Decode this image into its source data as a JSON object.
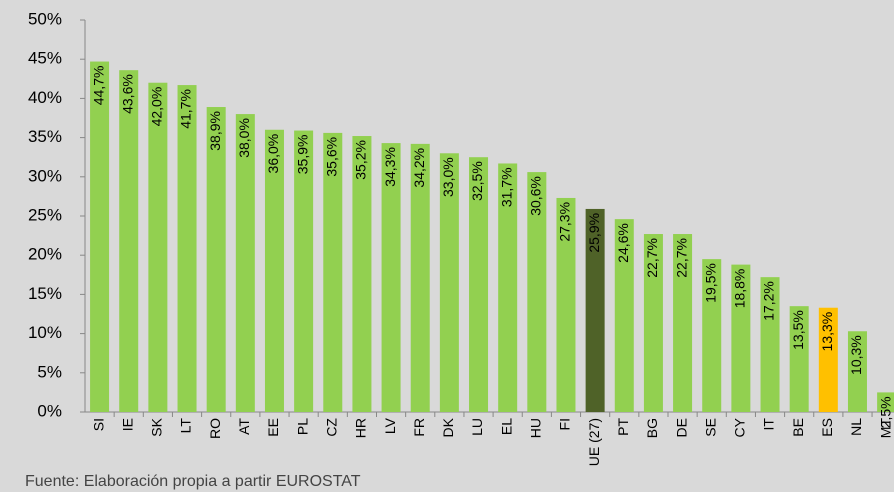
{
  "chart_data": {
    "type": "bar",
    "categories": [
      "SI",
      "IE",
      "SK",
      "LT",
      "RO",
      "AT",
      "EE",
      "PL",
      "CZ",
      "HR",
      "LV",
      "FR",
      "DK",
      "LU",
      "EL",
      "HU",
      "FI",
      "UE (27)",
      "PT",
      "BG",
      "DE",
      "SE",
      "CY",
      "IT",
      "BE",
      "ES",
      "NL",
      "MT"
    ],
    "values": [
      44.7,
      43.6,
      42.0,
      41.7,
      38.9,
      38.0,
      36.0,
      35.9,
      35.6,
      35.2,
      34.3,
      34.2,
      33.0,
      32.5,
      31.7,
      30.6,
      27.3,
      25.9,
      24.6,
      22.7,
      22.7,
      19.5,
      18.8,
      17.2,
      13.5,
      13.3,
      10.3,
      2.5
    ],
    "value_labels": [
      "44,7%",
      "43,6%",
      "42,0%",
      "41,7%",
      "38,9%",
      "38,0%",
      "36,0%",
      "35,9%",
      "35,6%",
      "35,2%",
      "34,3%",
      "34,2%",
      "33,0%",
      "32,5%",
      "31,7%",
      "30,6%",
      "27,3%",
      "25,9%",
      "24,6%",
      "22,7%",
      "22,7%",
      "19,5%",
      "18,8%",
      "17,2%",
      "13,5%",
      "13,3%",
      "10,3%",
      "2,5%"
    ],
    "colors": [
      "#92d050",
      "#92d050",
      "#92d050",
      "#92d050",
      "#92d050",
      "#92d050",
      "#92d050",
      "#92d050",
      "#92d050",
      "#92d050",
      "#92d050",
      "#92d050",
      "#92d050",
      "#92d050",
      "#92d050",
      "#92d050",
      "#92d050",
      "#4f6228",
      "#92d050",
      "#92d050",
      "#92d050",
      "#92d050",
      "#92d050",
      "#92d050",
      "#92d050",
      "#ffc000",
      "#92d050",
      "#92d050"
    ],
    "ylim": [
      0,
      50
    ],
    "yticks": [
      {
        "value": 0,
        "label": "0%"
      },
      {
        "value": 5,
        "label": "5%"
      },
      {
        "value": 10,
        "label": "10%"
      },
      {
        "value": 15,
        "label": "15%"
      },
      {
        "value": 20,
        "label": "20%"
      },
      {
        "value": 25,
        "label": "25%"
      },
      {
        "value": 30,
        "label": "30%"
      },
      {
        "value": 35,
        "label": "35%"
      },
      {
        "value": 40,
        "label": "40%"
      },
      {
        "value": 45,
        "label": "45%"
      },
      {
        "value": 50,
        "label": "50%"
      }
    ],
    "grid": false,
    "source": "Fuente: Elaboración propia a partir EUROSTAT"
  }
}
